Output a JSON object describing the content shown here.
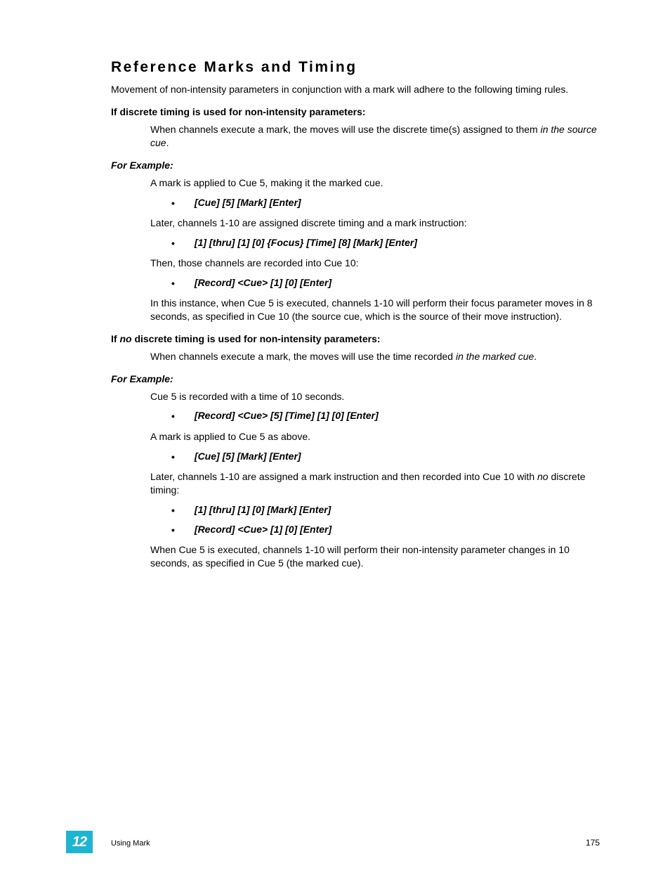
{
  "title": "Reference Marks and Timing",
  "intro": "Movement of non-intensity parameters in conjunction with a mark will adhere to the following timing rules.",
  "sec1_heading": "If discrete timing is used for non-intensity parameters:",
  "sec1_body_pre": "When channels execute a mark, the moves will use the discrete time(s) assigned to them ",
  "sec1_body_ital": "in the source cue",
  "sec1_body_post": ".",
  "example_label": "For Example:",
  "ex1_l1": "A mark is applied to Cue 5, making it the marked cue.",
  "ex1_b1": "[Cue] [5] [Mark] [Enter]",
  "ex1_l2": "Later, channels 1-10 are assigned discrete timing and a mark instruction:",
  "ex1_b2": "[1] [thru] [1] [0] {Focus} [Time] [8] [Mark] [Enter]",
  "ex1_l3": "Then, those channels are recorded into Cue 10:",
  "ex1_b3": "[Record] <Cue> [1] [0] [Enter]",
  "ex1_l4": "In this instance, when Cue 5 is executed, channels 1-10 will perform their focus parameter moves in 8 seconds, as specified in Cue 10 (the source cue, which is the source of their move instruction).",
  "sec2_heading_pre": "If ",
  "sec2_heading_ital": "no",
  "sec2_heading_post": " discrete timing is used for non-intensity parameters:",
  "sec2_body_pre": "When channels execute a mark, the moves will use the time recorded ",
  "sec2_body_ital": "in the marked cue",
  "sec2_body_post": ".",
  "ex2_l1": "Cue 5 is recorded with a time of 10 seconds.",
  "ex2_b1": "[Record] <Cue> [5] [Time] [1] [0] [Enter]",
  "ex2_l2": "A mark is applied to Cue 5 as above.",
  "ex2_b2": "[Cue] [5] [Mark] [Enter]",
  "ex2_l3_pre": "Later, channels 1-10 are assigned a mark instruction and then recorded into Cue 10 with ",
  "ex2_l3_ital": "no",
  "ex2_l3_post": " discrete timing:",
  "ex2_b3": "[1] [thru] [1] [0] [Mark] [Enter]",
  "ex2_b4": "[Record] <Cue> [1] [0] [Enter]",
  "ex2_l4": "When Cue 5 is executed, channels 1-10 will perform their non-intensity parameter changes in 10 seconds, as specified in Cue 5 (the marked cue).",
  "chapter_number": "12",
  "footer_label": "Using Mark",
  "page_number": "175",
  "bullet_char": "•"
}
